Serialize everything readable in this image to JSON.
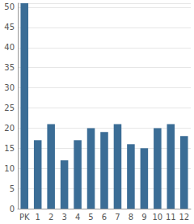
{
  "chart_data": {
    "type": "bar",
    "categories": [
      "PK",
      "1",
      "2",
      "3",
      "4",
      "5",
      "6",
      "7",
      "8",
      "9",
      "10",
      "11",
      "12"
    ],
    "values": [
      51,
      17,
      21,
      12,
      17,
      20,
      19,
      21,
      16,
      15,
      20,
      21,
      18
    ],
    "color": "#3b6d96",
    "ylim": [
      0,
      51
    ],
    "yticks": [
      0,
      5,
      10,
      15,
      20,
      25,
      30,
      35,
      40,
      45,
      50
    ],
    "grid": true
  }
}
